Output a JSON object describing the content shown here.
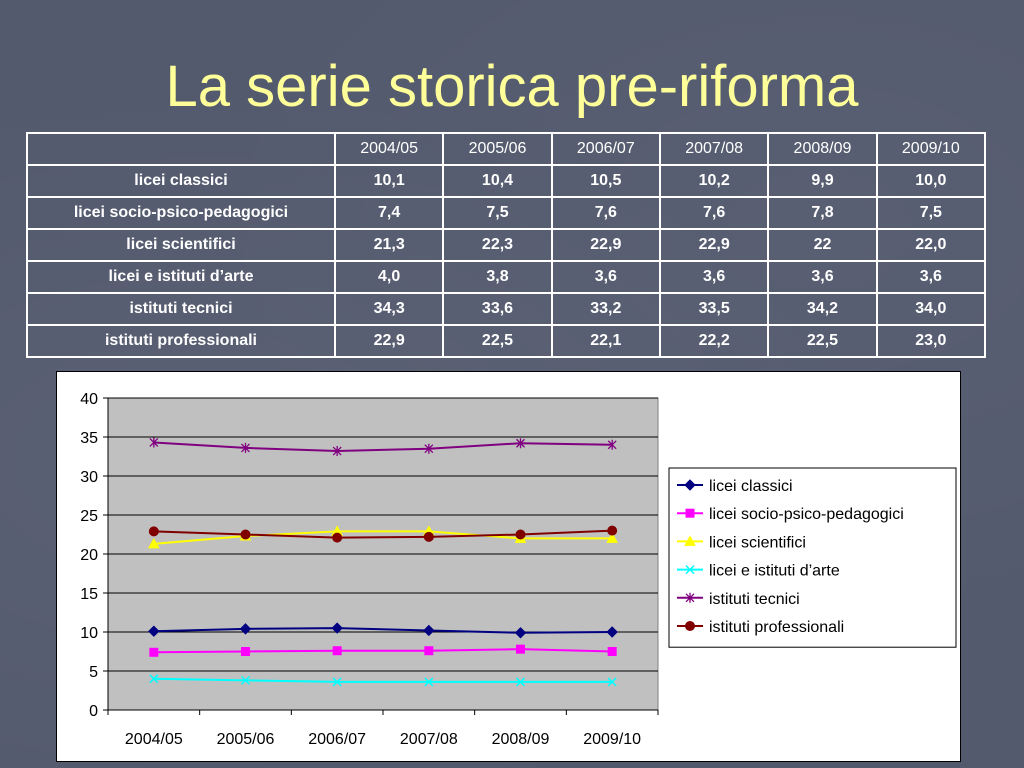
{
  "slide": {
    "title": "La serie storica pre-riforma"
  },
  "table": {
    "headers": [
      "",
      "2004/05",
      "2005/06",
      "2006/07",
      "2007/08",
      "2008/09",
      "2009/10"
    ],
    "rows": [
      {
        "label": "licei classici",
        "values": [
          "10,1",
          "10,4",
          "10,5",
          "10,2",
          "9,9",
          "10,0"
        ]
      },
      {
        "label": "licei socio-psico-pedagogici",
        "values": [
          "7,4",
          "7,5",
          "7,6",
          "7,6",
          "7,8",
          "7,5"
        ]
      },
      {
        "label": "licei scientifici",
        "values": [
          "21,3",
          "22,3",
          "22,9",
          "22,9",
          "22",
          "22,0"
        ]
      },
      {
        "label": "licei e istituti d’arte",
        "values": [
          "4,0",
          "3,8",
          "3,6",
          "3,6",
          "3,6",
          "3,6"
        ]
      },
      {
        "label": "istituti tecnici",
        "values": [
          "34,3",
          "33,6",
          "33,2",
          "33,5",
          "34,2",
          "34,0"
        ]
      },
      {
        "label": "istituti professionali",
        "values": [
          "22,9",
          "22,5",
          "22,1",
          "22,2",
          "22,5",
          "23,0"
        ]
      }
    ]
  },
  "chart_data": {
    "type": "line",
    "x": [
      "2004/05",
      "2005/06",
      "2006/07",
      "2007/08",
      "2008/09",
      "2009/10"
    ],
    "ylim": [
      0,
      40
    ],
    "yticks": [
      0,
      5,
      10,
      15,
      20,
      25,
      30,
      35,
      40
    ],
    "grid": true,
    "legend": "right",
    "series": [
      {
        "name": "licei classici",
        "color": "#000080",
        "marker": "diamond",
        "values": [
          10.1,
          10.4,
          10.5,
          10.2,
          9.9,
          10.0
        ]
      },
      {
        "name": "licei socio-psico-pedagogici",
        "color": "#ff00ff",
        "marker": "square",
        "values": [
          7.4,
          7.5,
          7.6,
          7.6,
          7.8,
          7.5
        ]
      },
      {
        "name": "licei scientifici",
        "color": "#ffff00",
        "marker": "triangle",
        "values": [
          21.3,
          22.3,
          22.9,
          22.9,
          22.0,
          22.0
        ]
      },
      {
        "name": "licei e istituti d’arte",
        "color": "#00ffff",
        "marker": "x",
        "values": [
          4.0,
          3.8,
          3.6,
          3.6,
          3.6,
          3.6
        ]
      },
      {
        "name": "istituti tecnici",
        "color": "#800080",
        "marker": "star",
        "values": [
          34.3,
          33.6,
          33.2,
          33.5,
          34.2,
          34.0
        ]
      },
      {
        "name": "istituti professionali",
        "color": "#800000",
        "marker": "circle",
        "values": [
          22.9,
          22.5,
          22.1,
          22.2,
          22.5,
          23.0
        ]
      }
    ]
  }
}
